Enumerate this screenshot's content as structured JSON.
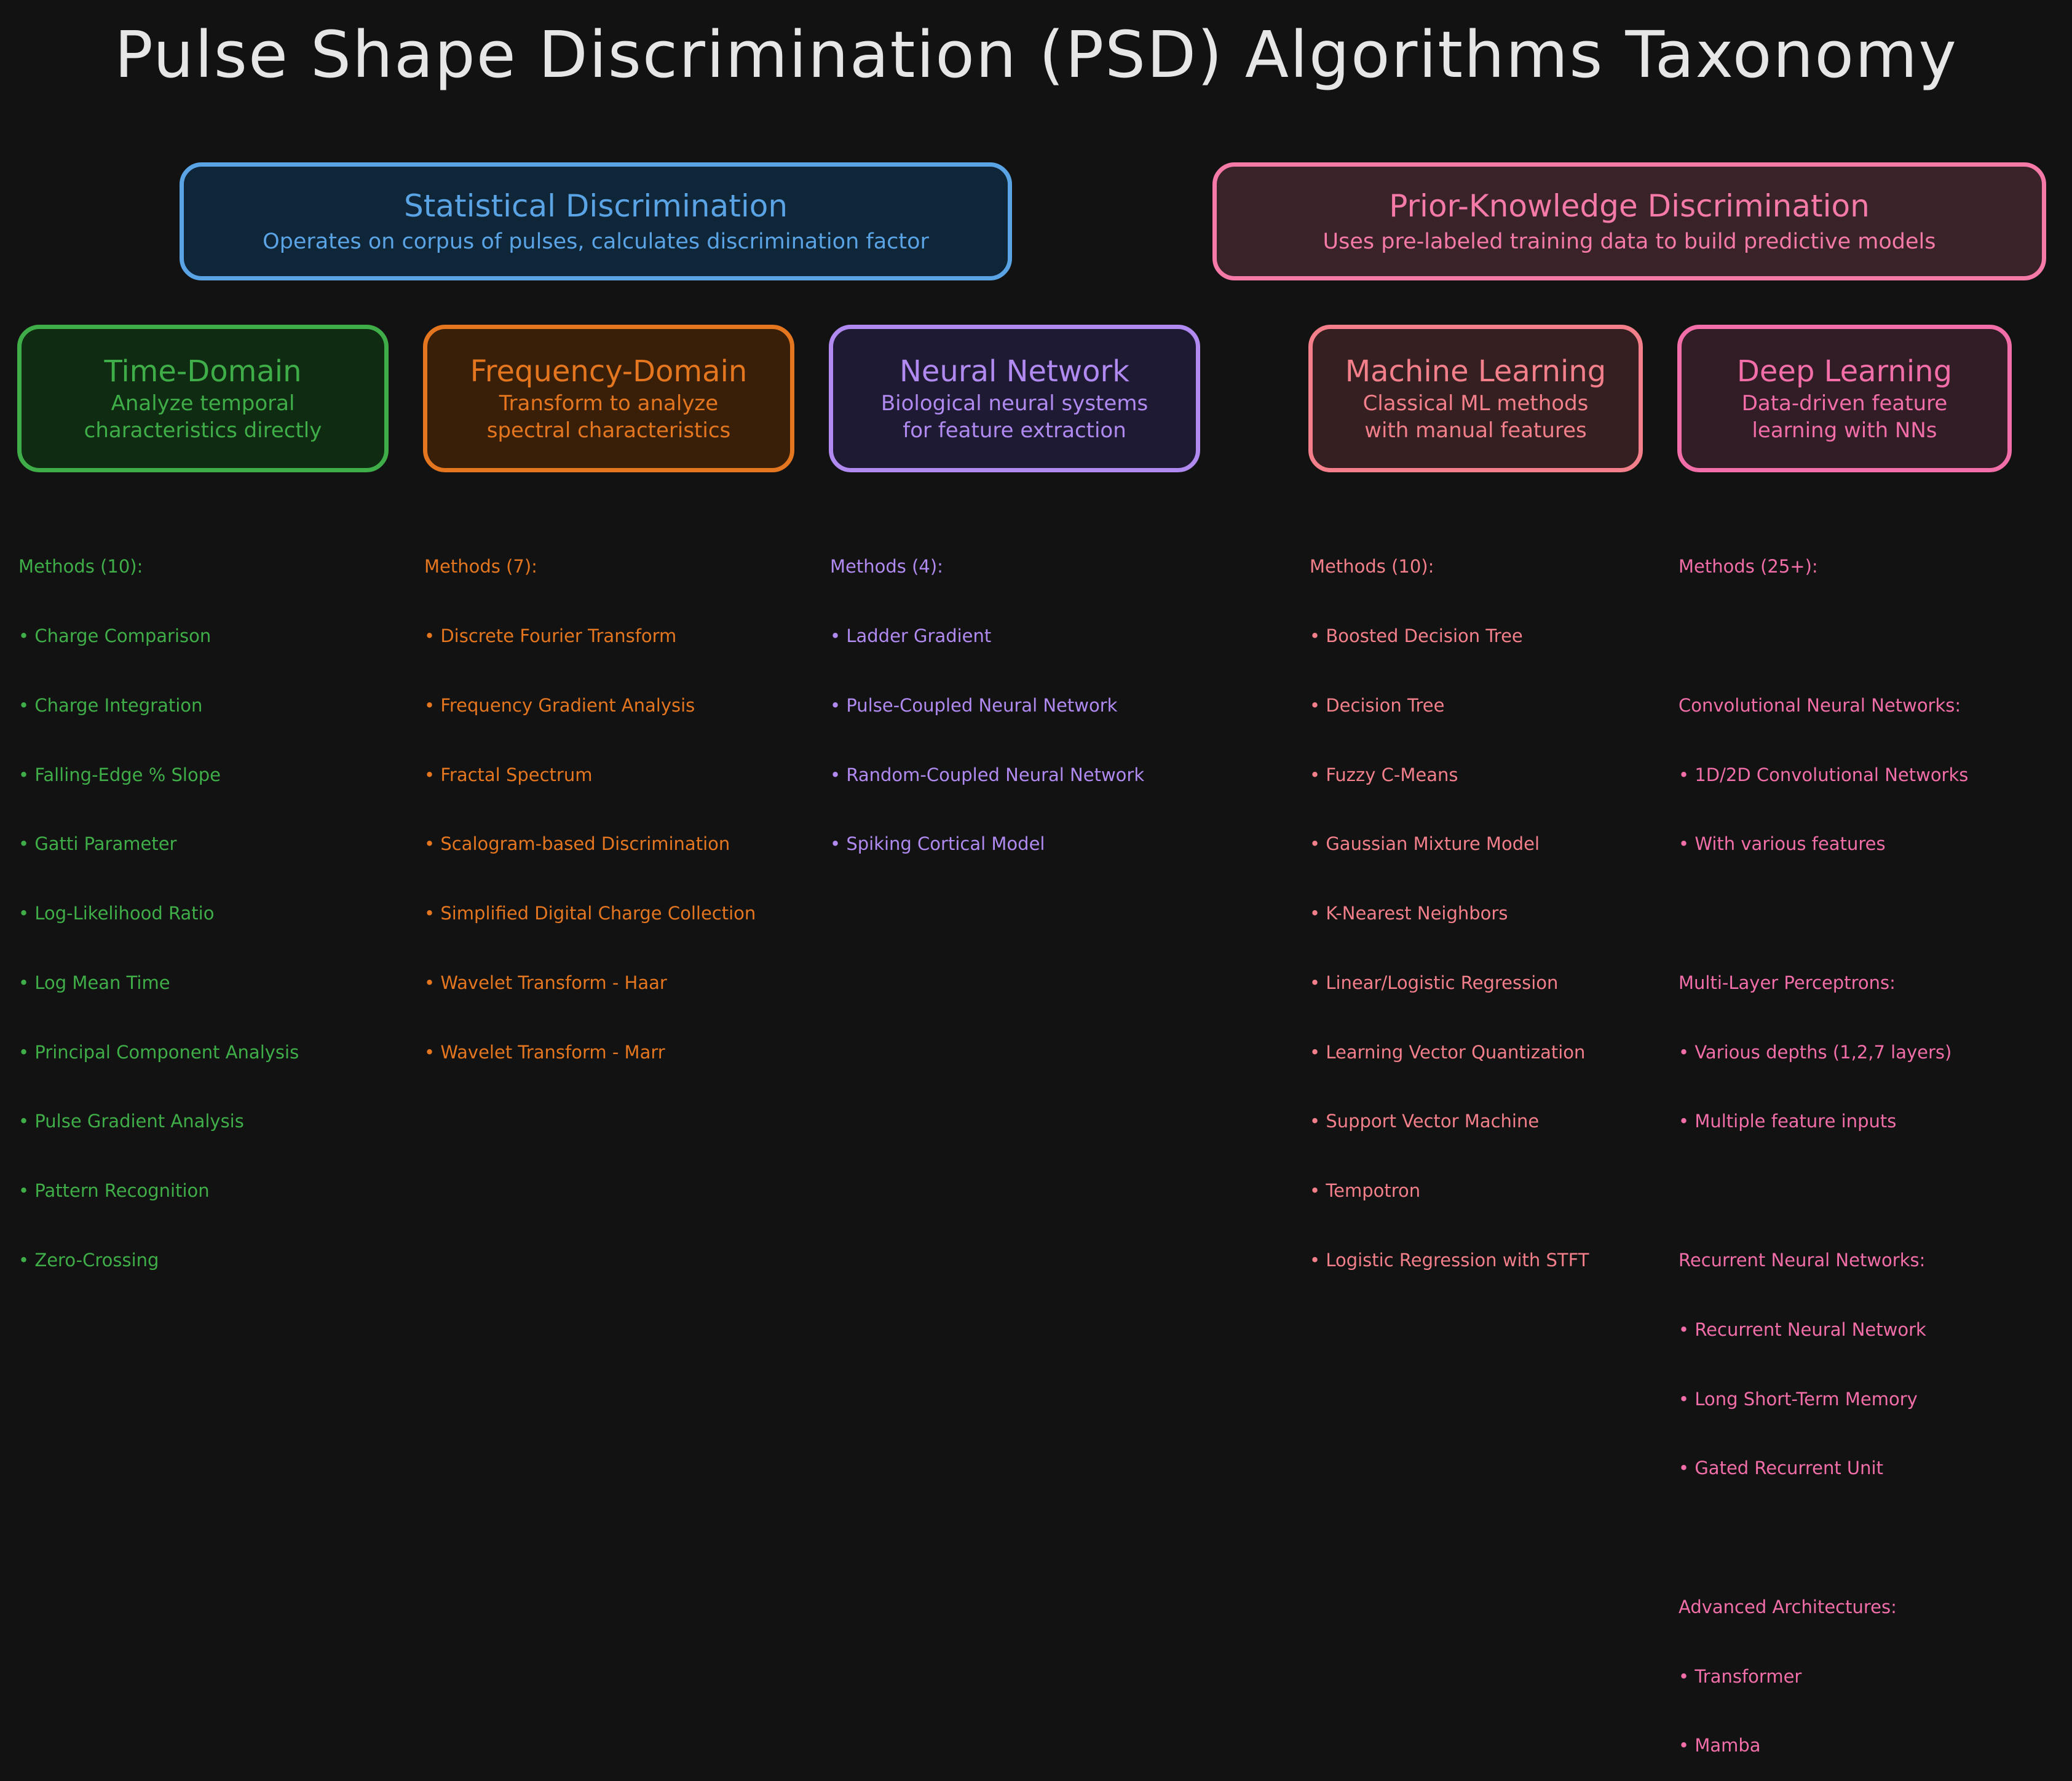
{
  "title": "Pulse Shape Discrimination (PSD) Algorithms Taxonomy",
  "colors": {
    "background": "#121212",
    "statistical": "#5aa4e6",
    "prior": "#f57aa8",
    "time": "#3fae48",
    "frequency": "#e57620",
    "neural": "#b08af0",
    "ml": "#f27f8a",
    "dl": "#f26ea8"
  },
  "categories": {
    "statistical": {
      "title": "Statistical Discrimination",
      "description": "Operates on corpus of pulses, calculates discrimination factor"
    },
    "prior": {
      "title": "Prior-Knowledge Discrimination",
      "description": "Uses pre-labeled training data to build predictive models"
    }
  },
  "subcategories": {
    "time": {
      "title": "Time-Domain",
      "desc1": "Analyze temporal",
      "desc2": "characteristics directly",
      "methods_header": "Methods (10):",
      "methods": [
        "Charge Comparison",
        "Charge Integration",
        "Falling-Edge % Slope",
        "Gatti Parameter",
        "Log-Likelihood Ratio",
        "Log Mean Time",
        "Principal Component Analysis",
        "Pulse Gradient Analysis",
        "Pattern Recognition",
        "Zero-Crossing"
      ]
    },
    "frequency": {
      "title": "Frequency-Domain",
      "desc1": "Transform to analyze",
      "desc2": "spectral characteristics",
      "methods_header": "Methods (7):",
      "methods": [
        "Discrete Fourier Transform",
        "Frequency Gradient Analysis",
        "Fractal Spectrum",
        "Scalogram-based Discrimination",
        "Simplified Digital Charge Collection",
        "Wavelet Transform - Haar",
        "Wavelet Transform - Marr"
      ]
    },
    "neural": {
      "title": "Neural Network",
      "desc1": "Biological neural systems",
      "desc2": "for feature extraction",
      "methods_header": "Methods (4):",
      "methods": [
        "Ladder Gradient",
        "Pulse-Coupled Neural Network",
        "Random-Coupled Neural Network",
        "Spiking Cortical Model"
      ]
    },
    "ml": {
      "title": "Machine Learning",
      "desc1": "Classical ML methods",
      "desc2": "with manual features",
      "methods_header": "Methods (10):",
      "methods": [
        "Boosted Decision Tree",
        "Decision Tree",
        "Fuzzy C-Means",
        "Gaussian Mixture Model",
        "K-Nearest Neighbors",
        "Linear/Logistic Regression",
        "Learning Vector Quantization",
        "Support Vector Machine",
        "Tempotron",
        "Logistic Regression with STFT"
      ]
    },
    "dl": {
      "title": "Deep Learning",
      "desc1": "Data-driven feature",
      "desc2": "learning with NNs",
      "methods_header": "Methods (25+):",
      "groups": [
        {
          "header": "Convolutional Neural Networks:",
          "items": [
            "1D/2D Convolutional Networks",
            "With various features"
          ]
        },
        {
          "header": "Multi-Layer Perceptrons:",
          "items": [
            "Various depths (1,2,7 layers)",
            "Multiple feature inputs"
          ]
        },
        {
          "header": "Recurrent Neural Networks:",
          "items": [
            "Recurrent Neural Network",
            "Long Short-Term Memory",
            "Gated Recurrent Unit"
          ]
        },
        {
          "header": "Advanced Architectures:",
          "items": [
            "Transformer",
            "Mamba"
          ]
        }
      ]
    }
  }
}
